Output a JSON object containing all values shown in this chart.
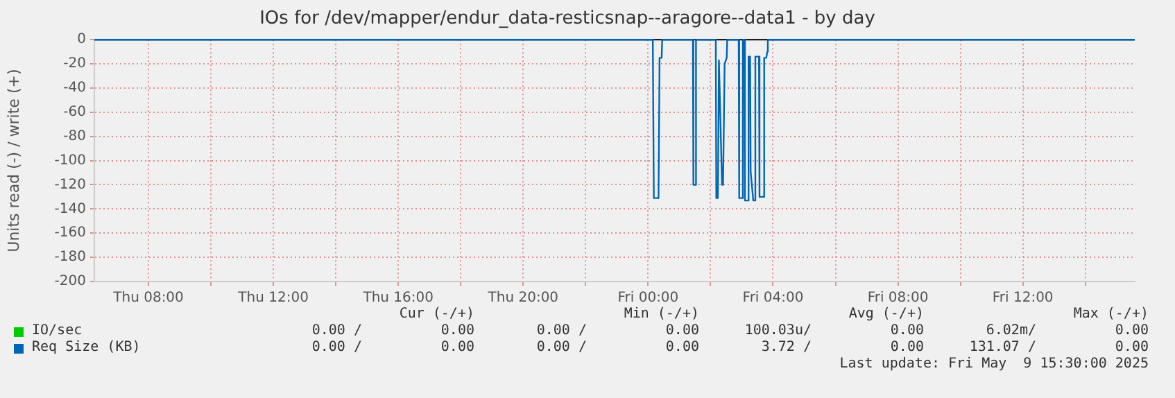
{
  "chart_data": {
    "type": "line",
    "title": "IOs for /dev/mapper/endur_data-resticsnap--aragore--data1 - by day",
    "ylabel": "Units read (-) / write (+)",
    "xlim": [
      "2025-05-08T06:16",
      "2025-05-09T15:35"
    ],
    "xticks": [
      {
        "value": "2025-05-08T08:00",
        "label": "Thu 08:00"
      },
      {
        "value": "2025-05-08T10:00",
        "label": null
      },
      {
        "value": "2025-05-08T12:00",
        "label": "Thu 12:00"
      },
      {
        "value": "2025-05-08T14:00",
        "label": null
      },
      {
        "value": "2025-05-08T16:00",
        "label": "Thu 16:00"
      },
      {
        "value": "2025-05-08T18:00",
        "label": null
      },
      {
        "value": "2025-05-08T20:00",
        "label": "Thu 20:00"
      },
      {
        "value": "2025-05-08T22:00",
        "label": null
      },
      {
        "value": "2025-05-09T00:00",
        "label": "Fri 00:00"
      },
      {
        "value": "2025-05-09T02:00",
        "label": null
      },
      {
        "value": "2025-05-09T04:00",
        "label": "Fri 04:00"
      },
      {
        "value": "2025-05-09T06:00",
        "label": null
      },
      {
        "value": "2025-05-09T08:00",
        "label": "Fri 08:00"
      },
      {
        "value": "2025-05-09T10:00",
        "label": null
      },
      {
        "value": "2025-05-09T12:00",
        "label": "Fri 12:00"
      },
      {
        "value": "2025-05-09T14:00",
        "label": null
      }
    ],
    "ylim": [
      -200,
      0
    ],
    "yticks": [
      -200,
      -180,
      -160,
      -140,
      -120,
      -100,
      -80,
      -60,
      -40,
      -20,
      0
    ],
    "grid": true,
    "marker": "none",
    "line_style": "solid",
    "legend": "bottom",
    "series": [
      {
        "name": "IO/sec",
        "color": "#00cc00"
      },
      {
        "name": "Req Size (KB)",
        "color": "#0066b3",
        "x": [
          "2025-05-08T06:16",
          "2025-05-09T00:09",
          "2025-05-09T00:11",
          "2025-05-09T00:20",
          "2025-05-09T00:22",
          "2025-05-09T00:26",
          "2025-05-09T00:27",
          "2025-05-09T01:26",
          "2025-05-09T01:27",
          "2025-05-09T01:31",
          "2025-05-09T01:32",
          "2025-05-09T02:10",
          "2025-05-09T02:11",
          "2025-05-09T02:14",
          "2025-05-09T02:16",
          "2025-05-09T02:18",
          "2025-05-09T02:22",
          "2025-05-09T02:24",
          "2025-05-09T02:27",
          "2025-05-09T02:31",
          "2025-05-09T02:32",
          "2025-05-09T02:54",
          "2025-05-09T02:55",
          "2025-05-09T03:01",
          "2025-05-09T03:02",
          "2025-05-09T03:05",
          "2025-05-09T03:06",
          "2025-05-09T03:12",
          "2025-05-09T03:13",
          "2025-05-09T03:16",
          "2025-05-09T03:17",
          "2025-05-09T03:19",
          "2025-05-09T03:22",
          "2025-05-09T03:25",
          "2025-05-09T03:26",
          "2025-05-09T03:33",
          "2025-05-09T03:34",
          "2025-05-09T03:37",
          "2025-05-09T03:41",
          "2025-05-09T03:43",
          "2025-05-09T03:47",
          "2025-05-09T03:49",
          "2025-05-09T03:50",
          "2025-05-09T15:35"
        ],
        "values": [
          0,
          0,
          -131,
          -131,
          -15,
          -15,
          0,
          0,
          -120,
          -120,
          0,
          0,
          -131,
          -131,
          -17,
          -17,
          -120,
          -120,
          -20,
          -15,
          0,
          0,
          -131,
          -131,
          0,
          0,
          -133,
          -133,
          -14,
          -14,
          -109,
          -109,
          -133,
          -133,
          -14,
          -14,
          -130,
          -130,
          -130,
          -15,
          -15,
          -10,
          0,
          0
        ]
      }
    ],
    "annotations": [
      "Cur (-/+)",
      "Min (-/+)",
      "Avg (-/+)",
      "Max (-/+)",
      "0.00 /",
      "0.00",
      "0.00 /",
      "0.00",
      "100.03u/",
      "0.00",
      "6.02m/",
      "0.00",
      "0.00 /",
      "0.00",
      "0.00 /",
      "0.00",
      "3.72 /",
      "0.00",
      "131.07 /",
      "0.00",
      "Last update: Fri May  9 15:30:00 2025"
    ]
  }
}
